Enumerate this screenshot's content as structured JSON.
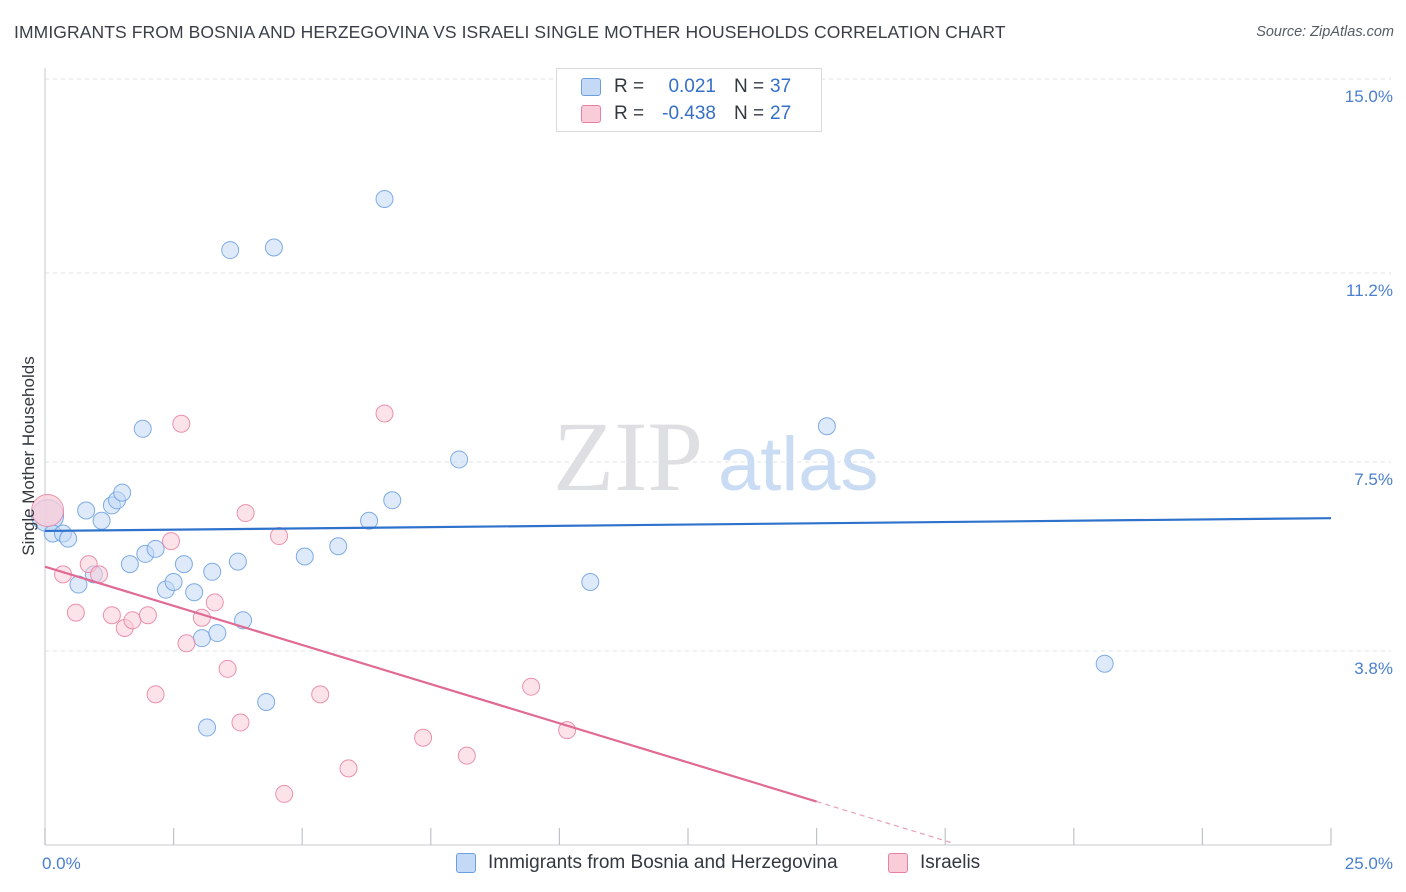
{
  "header": {
    "title": "IMMIGRANTS FROM BOSNIA AND HERZEGOVINA VS ISRAELI SINGLE MOTHER HOUSEHOLDS CORRELATION CHART",
    "source": "Source: ZipAtlas.com"
  },
  "watermark": {
    "zip": "ZIP",
    "atlas": "atlas"
  },
  "legend": {
    "rows": [
      {
        "r_label": "R =",
        "r_value": "0.021",
        "n_label": "N =",
        "n_value": "37",
        "color": "#a8c8f0"
      },
      {
        "r_label": "R =",
        "r_value": "-0.438",
        "n_label": "N =",
        "n_value": "27",
        "color": "#f6b8cb"
      }
    ]
  },
  "chart_data": {
    "type": "scatter",
    "title": "IMMIGRANTS FROM BOSNIA AND HERZEGOVINA VS ISRAELI SINGLE MOTHER HOUSEHOLDS CORRELATION CHART",
    "xlabel": "",
    "ylabel": "Single Mother Households",
    "xlim": [
      0,
      25
    ],
    "ylim": [
      0,
      15
    ],
    "x_tick_labels": [
      "0.0%",
      "25.0%"
    ],
    "y_ticks": [
      3.8,
      7.5,
      11.2,
      15.0
    ],
    "y_tick_labels": [
      "3.8%",
      "7.5%",
      "11.2%",
      "15.0%"
    ],
    "grid": true,
    "series": [
      {
        "name": "Immigrants from Bosnia and Herzegovina",
        "color": "#6a9fe0",
        "fill": "#c3d9f5",
        "trend": {
          "x0": 0,
          "y0": 6.15,
          "x1": 25,
          "y1": 6.4
        },
        "points": [
          [
            0.05,
            6.45
          ],
          [
            0.15,
            6.1
          ],
          [
            0.35,
            6.1
          ],
          [
            0.45,
            6.0
          ],
          [
            0.65,
            5.1
          ],
          [
            0.8,
            6.55
          ],
          [
            0.95,
            5.3
          ],
          [
            1.1,
            6.35
          ],
          [
            1.3,
            6.65
          ],
          [
            1.4,
            6.75
          ],
          [
            1.5,
            6.9
          ],
          [
            1.65,
            5.5
          ],
          [
            1.9,
            8.15
          ],
          [
            1.95,
            5.7
          ],
          [
            2.15,
            5.8
          ],
          [
            2.35,
            5.0
          ],
          [
            2.5,
            5.15
          ],
          [
            2.7,
            5.5
          ],
          [
            2.9,
            4.95
          ],
          [
            3.05,
            4.05
          ],
          [
            3.15,
            2.3
          ],
          [
            3.25,
            5.35
          ],
          [
            3.35,
            4.15
          ],
          [
            3.6,
            11.65
          ],
          [
            3.75,
            5.55
          ],
          [
            3.85,
            4.4
          ],
          [
            4.3,
            2.8
          ],
          [
            4.45,
            11.7
          ],
          [
            5.05,
            5.65
          ],
          [
            5.7,
            5.85
          ],
          [
            6.3,
            6.35
          ],
          [
            6.6,
            12.65
          ],
          [
            6.75,
            6.75
          ],
          [
            8.05,
            7.55
          ],
          [
            10.6,
            5.15
          ],
          [
            15.2,
            8.2
          ],
          [
            20.6,
            3.55
          ]
        ]
      },
      {
        "name": "Israelis",
        "color": "#e880a0",
        "fill": "#f9ccd9",
        "trend": {
          "x0": 0,
          "y0": 5.45,
          "x1": 15,
          "y1": 0.85,
          "dash_to_x": 17.65
        },
        "points": [
          [
            0.05,
            6.55
          ],
          [
            0.35,
            5.3
          ],
          [
            0.6,
            4.55
          ],
          [
            0.85,
            5.5
          ],
          [
            1.05,
            5.3
          ],
          [
            1.3,
            4.5
          ],
          [
            1.55,
            4.25
          ],
          [
            1.7,
            4.4
          ],
          [
            2.0,
            4.5
          ],
          [
            2.15,
            2.95
          ],
          [
            2.45,
            5.95
          ],
          [
            2.65,
            8.25
          ],
          [
            2.75,
            3.95
          ],
          [
            3.05,
            4.45
          ],
          [
            3.3,
            4.75
          ],
          [
            3.55,
            3.45
          ],
          [
            3.8,
            2.4
          ],
          [
            3.9,
            6.5
          ],
          [
            4.55,
            6.05
          ],
          [
            4.65,
            1.0
          ],
          [
            5.35,
            2.95
          ],
          [
            5.9,
            1.5
          ],
          [
            6.6,
            8.45
          ],
          [
            7.35,
            2.1
          ],
          [
            8.2,
            1.75
          ],
          [
            9.45,
            3.1
          ],
          [
            10.15,
            2.25
          ]
        ]
      }
    ]
  },
  "bottom_legend": {
    "items": [
      {
        "label": "Immigrants from Bosnia and Herzegovina",
        "color": "#a8c8f0"
      },
      {
        "label": "Israelis",
        "color": "#f6b8cb"
      }
    ]
  }
}
